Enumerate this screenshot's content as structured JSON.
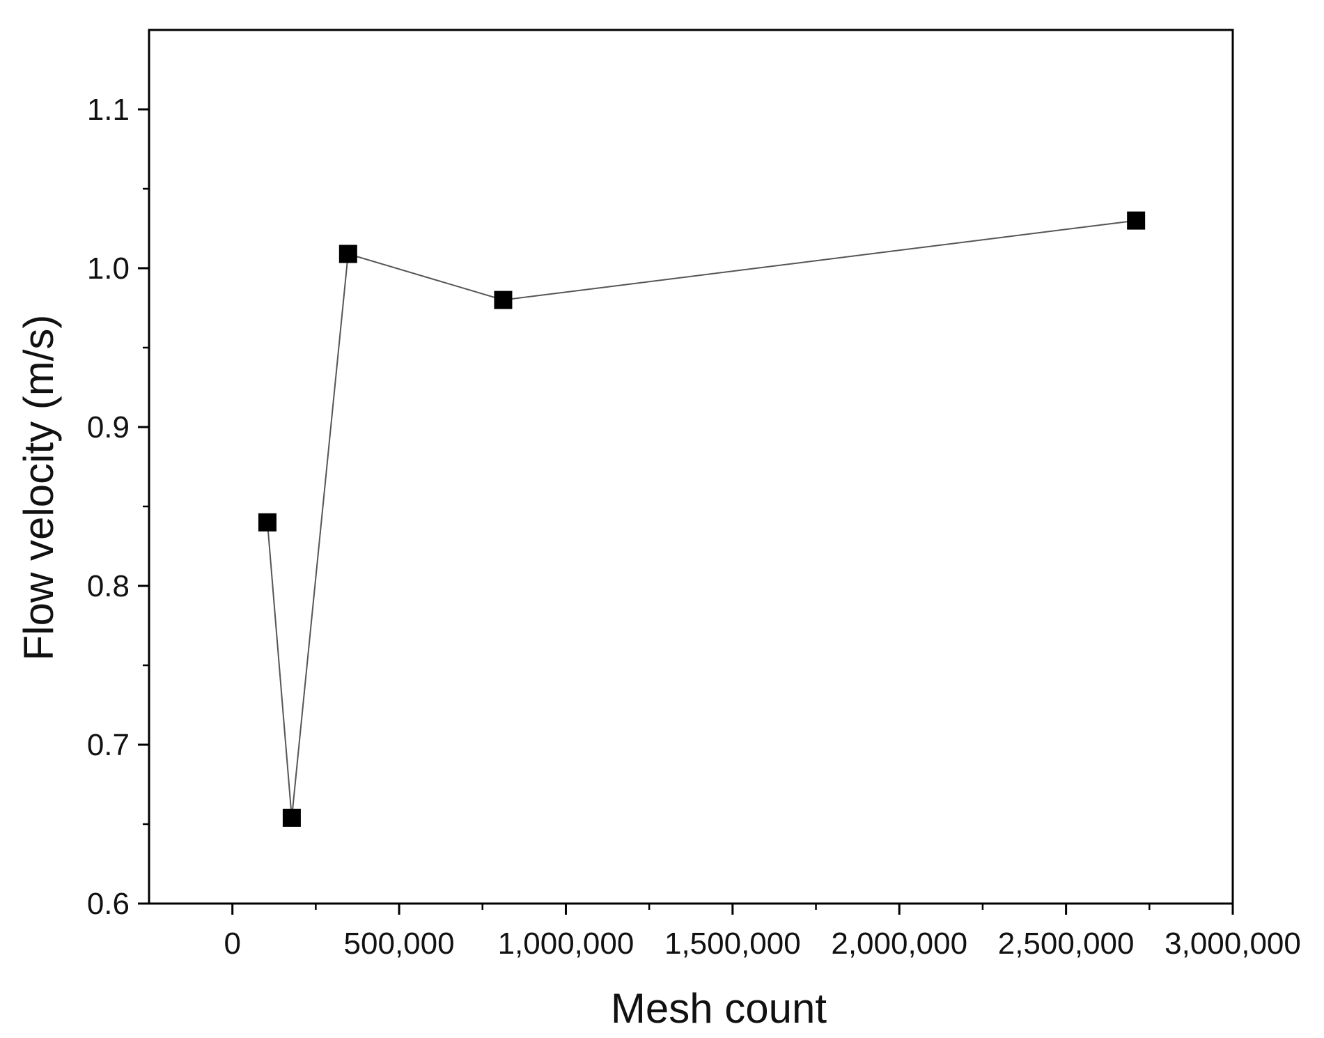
{
  "chart_data": {
    "type": "line",
    "xlabel": "Mesh count",
    "ylabel": "Flow velocity (m/s)",
    "xlim": [
      -250000,
      3000000
    ],
    "ylim": [
      0.6,
      1.15
    ],
    "x_ticks": [
      0,
      500000,
      1000000,
      1500000,
      2000000,
      2500000,
      3000000
    ],
    "x_tick_labels": [
      "0",
      "500,000",
      "1,000,000",
      "1,500,000",
      "2,000,000",
      "2,500,000",
      "3,000,000"
    ],
    "y_ticks": [
      0.6,
      0.7,
      0.8,
      0.9,
      1.0,
      1.1
    ],
    "y_tick_labels": [
      "0.6",
      "0.7",
      "0.8",
      "0.9",
      "1.0",
      "1.1"
    ],
    "grid": false,
    "legend": "none",
    "series": [
      {
        "x": [
          105000,
          178000,
          347000,
          812000,
          2710000
        ],
        "y": [
          0.84,
          0.654,
          1.009,
          0.98,
          1.03
        ],
        "marker": "square",
        "color": "#000000",
        "line_color": "#555555"
      }
    ]
  }
}
